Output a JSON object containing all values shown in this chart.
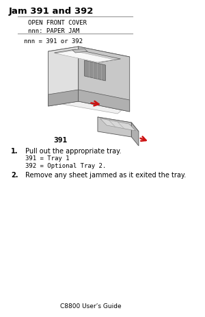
{
  "bg_color": "#ffffff",
  "title": "Jam 391 and 392",
  "box_line1": "OPEN FRONT COVER",
  "box_line2": "nnn: PAPER JAM",
  "nnn_line": "nnn = 391 or 392",
  "fig_label": "391",
  "step1_bold": "1.",
  "step1_text": "Pull out the appropriate tray.",
  "step1_sub1": "391 = Tray 1",
  "step1_sub2": "392 = Optional Tray 2.",
  "step2_bold": "2.",
  "step2_text": "Remove any sheet jammed as it exited the tray.",
  "footer": "C8800 User’s Guide",
  "title_fontsize": 9.5,
  "body_fontsize": 7,
  "mono_fontsize": 6.5,
  "rule_color": "#999999",
  "text_color": "#000000",
  "printer_gray1": "#e0e0e0",
  "printer_gray2": "#c8c8c8",
  "printer_gray3": "#b0b0b0",
  "printer_edge": "#555555",
  "arrow_color": "#cc1111"
}
